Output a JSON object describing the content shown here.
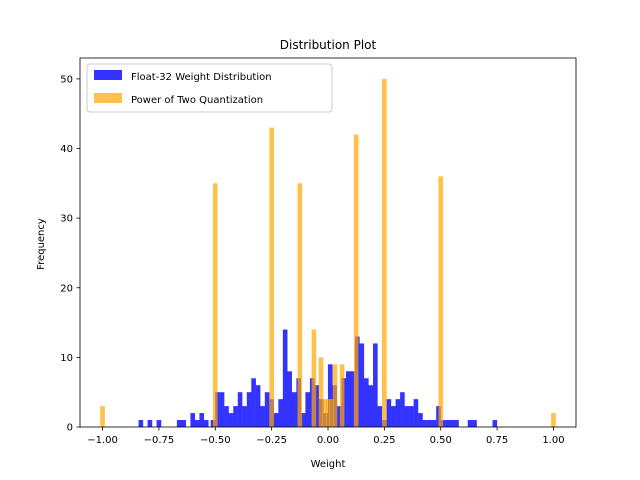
{
  "chart_data": {
    "type": "bar",
    "title": "Distribution Plot",
    "xlabel": "Weight",
    "ylabel": "Frequency",
    "xlim": [
      -1.1,
      1.1
    ],
    "ylim": [
      0,
      53
    ],
    "xticks": [
      -1.0,
      -0.75,
      -0.5,
      -0.25,
      0.0,
      0.25,
      0.5,
      0.75,
      1.0
    ],
    "xtick_labels": [
      "−1.00",
      "−0.75",
      "−0.50",
      "−0.25",
      "0.00",
      "0.25",
      "0.50",
      "0.75",
      "1.00"
    ],
    "yticks": [
      0,
      10,
      20,
      30,
      40,
      50
    ],
    "ytick_labels": [
      "0",
      "10",
      "20",
      "30",
      "40",
      "50"
    ],
    "bar_width": 0.0205,
    "legend_position": "upper-left",
    "grid": false,
    "series": [
      {
        "name": "Float-32 Weight Distribution",
        "color": "#0000ff",
        "opacity": 0.8,
        "x": [
          -0.83,
          -0.79,
          -0.75,
          -0.66,
          -0.64,
          -0.6,
          -0.58,
          -0.56,
          -0.54,
          -0.51,
          -0.49,
          -0.47,
          -0.45,
          -0.43,
          -0.41,
          -0.39,
          -0.37,
          -0.35,
          -0.33,
          -0.31,
          -0.29,
          -0.27,
          -0.25,
          -0.23,
          -0.21,
          -0.19,
          -0.17,
          -0.15,
          -0.13,
          -0.11,
          -0.09,
          -0.07,
          -0.05,
          -0.03,
          -0.01,
          0.01,
          0.03,
          0.05,
          0.07,
          0.09,
          0.11,
          0.13,
          0.15,
          0.17,
          0.19,
          0.21,
          0.23,
          0.25,
          0.27,
          0.29,
          0.31,
          0.33,
          0.35,
          0.37,
          0.39,
          0.41,
          0.43,
          0.45,
          0.47,
          0.49,
          0.51,
          0.53,
          0.55,
          0.57,
          0.63,
          0.65,
          0.74
        ],
        "values": [
          1,
          1,
          1,
          1,
          1,
          2,
          1,
          2,
          1,
          1,
          5,
          5,
          3,
          2,
          3,
          5,
          3,
          5,
          7,
          6,
          3,
          5,
          4,
          2,
          4,
          14,
          8,
          5,
          7,
          2,
          5,
          7,
          6,
          4,
          2,
          9,
          6,
          3,
          7,
          8,
          8,
          13,
          12,
          7,
          6,
          12,
          3,
          1,
          4,
          3,
          4,
          5,
          3,
          3,
          4,
          2,
          1,
          1,
          1,
          3,
          1,
          1,
          1,
          1,
          1,
          1,
          1
        ]
      },
      {
        "name": "Power of Two Quantization",
        "color": "#ffa500",
        "opacity": 0.7,
        "x": [
          -1.0,
          -0.5,
          -0.25,
          -0.125,
          -0.0625,
          -0.03125,
          -0.015625,
          0.0,
          0.015625,
          0.03125,
          0.0625,
          0.125,
          0.25,
          0.5,
          1.0
        ],
        "values": [
          3,
          35,
          43,
          35,
          14,
          10,
          4,
          4,
          4,
          9,
          9,
          42,
          50,
          36,
          2
        ]
      }
    ]
  }
}
